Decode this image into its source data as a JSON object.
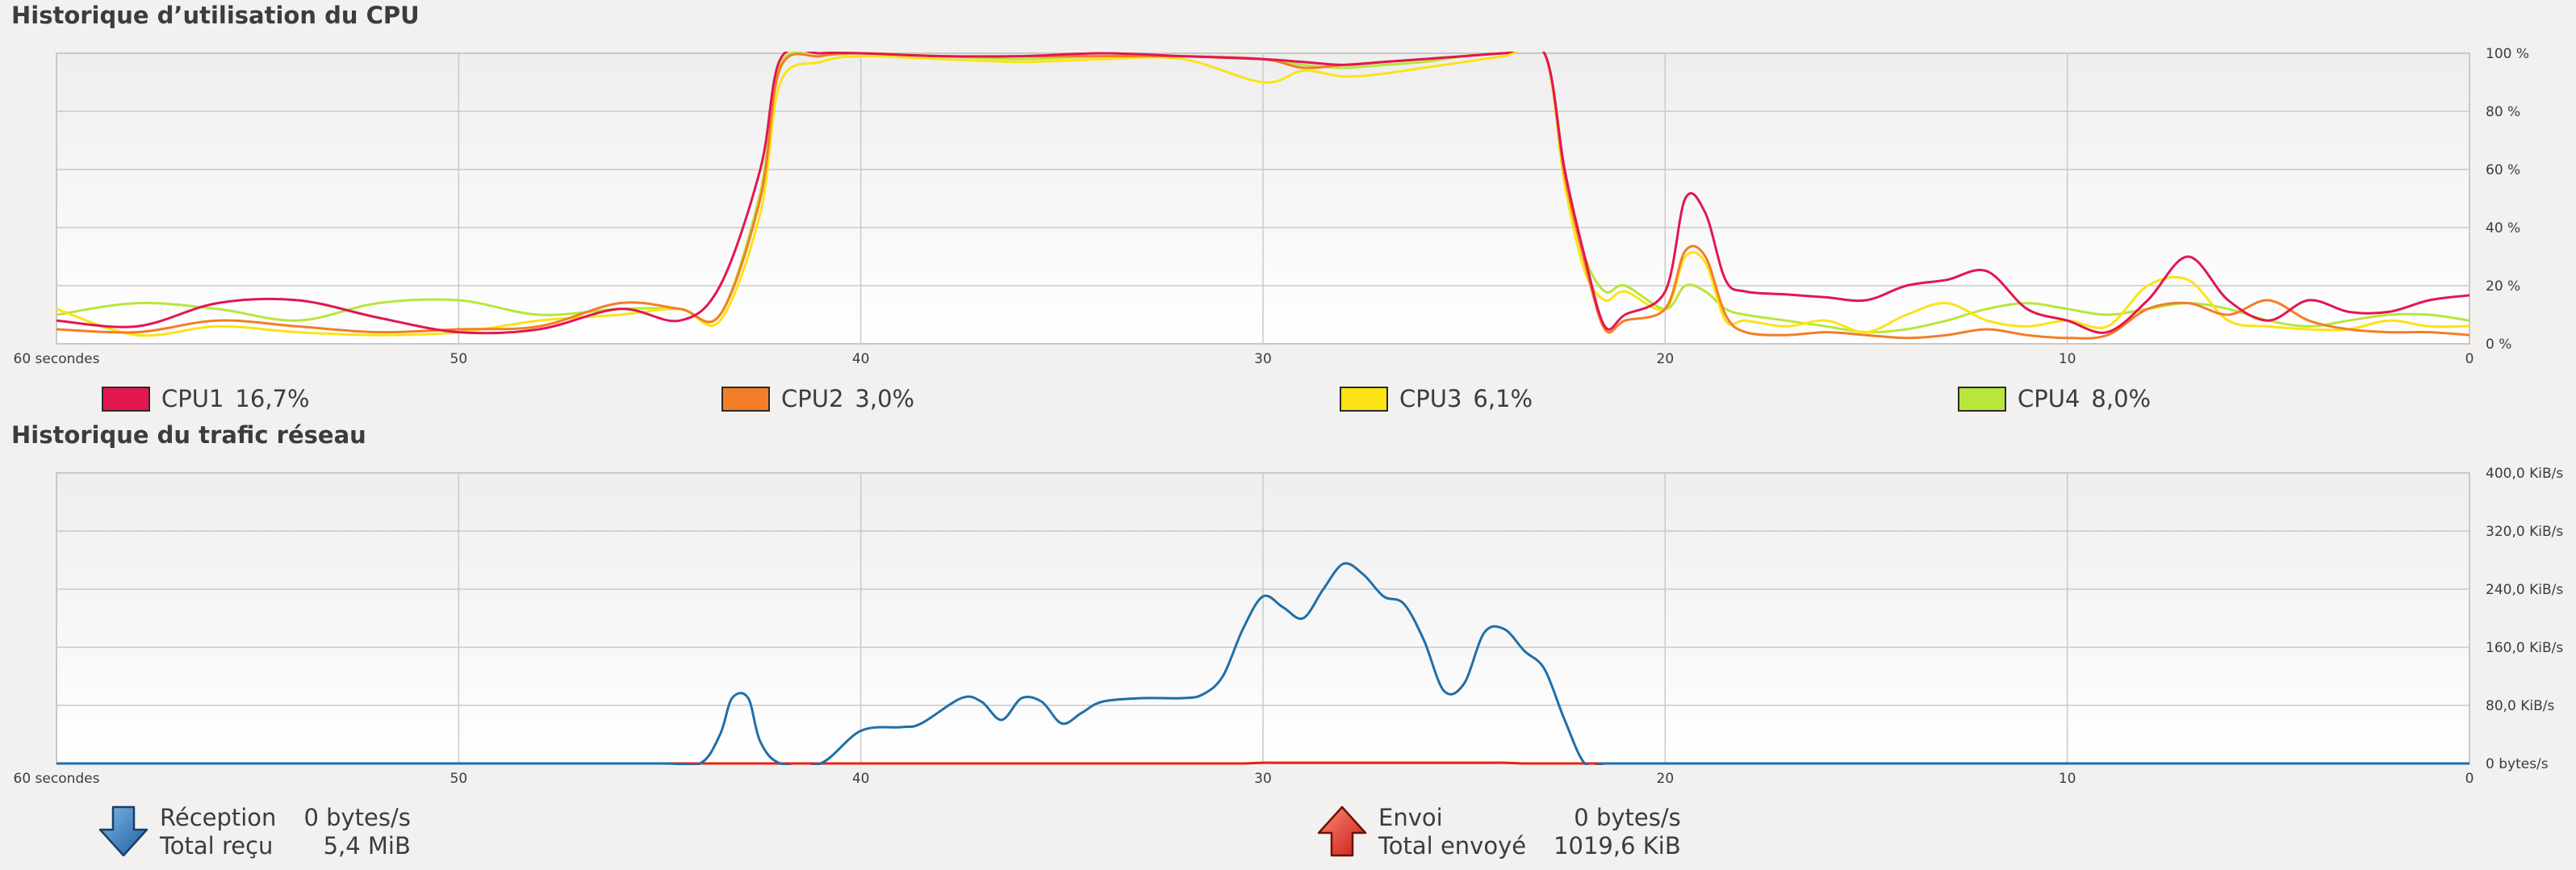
{
  "cpu": {
    "title": "Historique d’utilisation du CPU",
    "x_axis_label": "60 secondes",
    "legend": [
      {
        "name": "CPU1",
        "value": "16,7%",
        "color": "#e2174f"
      },
      {
        "name": "CPU2",
        "value": "3,0%",
        "color": "#f47d27"
      },
      {
        "name": "CPU3",
        "value": "6,1%",
        "color": "#fbe315"
      },
      {
        "name": "CPU4",
        "value": "8,0%",
        "color": "#b8e63b"
      }
    ]
  },
  "network": {
    "title": "Historique du trafic réseau",
    "x_axis_label": "60 secondes",
    "receive": {
      "label": "Réception",
      "rate": "0 bytes/s",
      "total_label": "Total reçu",
      "total": "5,4 MiB",
      "color": "#1f6fa8",
      "icon": "download-arrow-icon"
    },
    "send": {
      "label": "Envoi",
      "rate": "0 bytes/s",
      "total_label": "Total envoyé",
      "total": "1019,6 KiB",
      "color": "#e02616",
      "icon": "upload-arrow-icon"
    }
  },
  "chart_data": [
    {
      "type": "line",
      "title": "Historique d’utilisation du CPU",
      "x_tick_labels": [
        "60 secondes",
        "50",
        "40",
        "30",
        "20",
        "10",
        "0"
      ],
      "y_tick_labels": [
        "100 %",
        "80 %",
        "60 %",
        "40 %",
        "20 %",
        "0 %"
      ],
      "x": [
        60,
        58,
        56,
        54,
        52,
        50,
        48,
        46,
        44.5,
        43.5,
        42.5,
        42,
        41,
        40,
        38,
        36,
        34,
        32,
        30,
        29,
        28,
        27,
        26,
        25,
        24,
        23,
        22.5,
        22,
        21.5,
        21,
        20,
        19.5,
        19,
        18.5,
        18,
        17,
        16,
        15,
        14,
        13,
        12,
        11,
        10,
        9,
        8,
        7,
        6,
        5,
        4,
        3,
        2,
        1,
        0
      ],
      "series": [
        {
          "name": "CPU1",
          "color": "#e2174f",
          "values": [
            8,
            6,
            14,
            15,
            9,
            4,
            5,
            12,
            8,
            20,
            60,
            98,
            100,
            100,
            99,
            99,
            100,
            99,
            98,
            97,
            96,
            97,
            98,
            99,
            100,
            100,
            60,
            30,
            6,
            10,
            18,
            50,
            45,
            22,
            18,
            17,
            16,
            15,
            20,
            22,
            25,
            12,
            8,
            4,
            15,
            30,
            15,
            8,
            15,
            11,
            11,
            15,
            16.7
          ]
        },
        {
          "name": "CPU2",
          "color": "#f47d27",
          "values": [
            5,
            4,
            8,
            6,
            4,
            5,
            6,
            14,
            12,
            10,
            50,
            95,
            99,
            100,
            99,
            99,
            99,
            99,
            98,
            95,
            96,
            97,
            98,
            99,
            100,
            100,
            58,
            28,
            5,
            8,
            12,
            32,
            30,
            10,
            4,
            3,
            4,
            3,
            2,
            3,
            5,
            3,
            2,
            3,
            12,
            14,
            10,
            15,
            8,
            5,
            4,
            4,
            3
          ]
        },
        {
          "name": "CPU3",
          "color": "#fbe315",
          "values": [
            12,
            3,
            6,
            4,
            3,
            4,
            8,
            10,
            12,
            8,
            45,
            90,
            97,
            99,
            98,
            97,
            98,
            98,
            90,
            94,
            92,
            93,
            95,
            97,
            99,
            100,
            55,
            25,
            15,
            18,
            12,
            30,
            28,
            8,
            8,
            6,
            8,
            4,
            10,
            14,
            8,
            6,
            8,
            6,
            20,
            22,
            8,
            6,
            5,
            5,
            8,
            6,
            6.1
          ]
        },
        {
          "name": "CPU4",
          "color": "#b8e63b",
          "values": [
            10,
            14,
            12,
            8,
            14,
            15,
            10,
            12,
            12,
            10,
            52,
            96,
            99,
            100,
            99,
            98,
            99,
            99,
            98,
            96,
            95,
            96,
            97,
            99,
            100,
            100,
            58,
            30,
            18,
            20,
            12,
            20,
            18,
            12,
            10,
            8,
            6,
            4,
            5,
            8,
            12,
            14,
            12,
            10,
            12,
            14,
            12,
            8,
            6,
            8,
            10,
            10,
            8
          ]
        }
      ],
      "ylim": [
        0,
        100
      ],
      "xlim": [
        60,
        0
      ]
    },
    {
      "type": "line",
      "title": "Historique du trafic réseau",
      "x_tick_labels": [
        "60 secondes",
        "50",
        "40",
        "30",
        "20",
        "10",
        "0"
      ],
      "y_tick_labels": [
        "400,0 KiB/s",
        "320,0 KiB/s",
        "240,0 KiB/s",
        "160,0 KiB/s",
        "80,0 KiB/s",
        "0 bytes/s"
      ],
      "x": [
        60,
        50,
        45,
        44,
        43.5,
        43.2,
        42.8,
        42.5,
        42,
        41,
        40,
        39,
        38.5,
        37.5,
        37,
        36.5,
        36,
        35.5,
        35,
        34.5,
        34,
        33,
        32,
        31.5,
        31,
        30.5,
        30,
        29.5,
        29,
        28.5,
        28,
        27.5,
        27,
        26.5,
        26,
        25.5,
        25,
        24.5,
        24,
        23.5,
        23,
        22.5,
        22,
        21.5,
        21,
        20,
        10,
        0
      ],
      "series": [
        {
          "name": "Réception",
          "color": "#1f6fa8",
          "values": [
            0,
            0,
            0,
            0,
            40,
            90,
            90,
            30,
            0,
            0,
            45,
            50,
            55,
            90,
            85,
            60,
            90,
            85,
            55,
            70,
            85,
            90,
            90,
            95,
            120,
            185,
            230,
            215,
            200,
            240,
            275,
            260,
            230,
            220,
            170,
            100,
            110,
            180,
            185,
            155,
            130,
            60,
            0,
            0,
            0,
            0,
            0,
            0
          ]
        },
        {
          "name": "Envoi",
          "color": "#e02616",
          "values": [
            0,
            0,
            0,
            0,
            0,
            0,
            0,
            0,
            0,
            0,
            0,
            0,
            0,
            0,
            0,
            0,
            0,
            0,
            0,
            0,
            0,
            0,
            0,
            0,
            0,
            0,
            1,
            1,
            1,
            1,
            1,
            1,
            1,
            1,
            1,
            1,
            1,
            1,
            1,
            0,
            0,
            0,
            0,
            0,
            0,
            0,
            0,
            0
          ]
        }
      ],
      "ylim": [
        0,
        400
      ],
      "xlim": [
        60,
        0
      ]
    }
  ]
}
